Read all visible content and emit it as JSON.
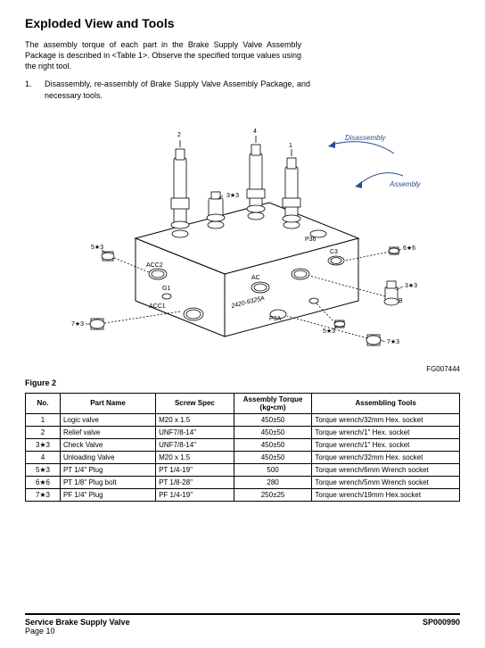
{
  "title": "Exploded View and Tools",
  "intro": "The assembly torque of each part in the Brake Supply Valve Assembly Package is described in <Table 1>. Observe the specified torque values using the right tool.",
  "list_num": "1.",
  "list_text": "Disassembly, re-assembly of Brake Supply Valve Assembly Package, and necessary tools.",
  "figure_label": "Figure 2",
  "figure_code": "FG007444",
  "arrows": {
    "disassembly": "Disassembly",
    "assembly": "Assembly"
  },
  "callouts": {
    "c2": "2",
    "c4": "4",
    "c1": "1",
    "c3x3": "3★3",
    "c5x3a": "5★3",
    "c6x6": "6★6",
    "c3x3b": "3★3",
    "c7x3a": "7★3",
    "c5x3b": "5★3",
    "c7x3b": "7★3"
  },
  "block_labels": {
    "acc2": "ACC2",
    "ac": "AC",
    "c3": "C3",
    "g1": "G1",
    "acc1": "ACC1",
    "partno": "2420-9325A",
    "p3a": "P3A",
    "p36": "P36",
    "b": "B"
  },
  "table": {
    "columns": [
      "No.",
      "Part Name",
      "Screw Spec",
      "Assembly Torque (kg•cm)",
      "Assembling Tools"
    ],
    "col_widths": [
      "8%",
      "22%",
      "18%",
      "18%",
      "34%"
    ],
    "rows": [
      [
        "1",
        "Logic valve",
        "M20 x 1.5",
        "450±50",
        "Torque wrench/32mm Hex. socket"
      ],
      [
        "2",
        "Relief valve",
        "UNF7/8-14\"",
        "450±50",
        "Torque wrench/1\" Hex. socket"
      ],
      [
        "3★3",
        "Check Valve",
        "UNF7/8-14\"",
        "450±50",
        "Torque wrench/1\" Hex. socket"
      ],
      [
        "4",
        "Unloading Valve",
        "M20 x 1.5",
        "450±50",
        "Torque wrench/32mm Hex. socket"
      ],
      [
        "5★3",
        "PT 1/4\" Plug",
        "PT 1/4-19\"",
        "500",
        "Torque wrench/6mm Wrench socket"
      ],
      [
        "6★6",
        "PT 1/8\" Plug bolt",
        "PT 1/8-28\"",
        "280",
        "Torque wrench/5mm Wrench socket"
      ],
      [
        "7★3",
        "PF 1/4\" Plug",
        "PF 1/4-19\"",
        "250±25",
        "Torque wrench/19mm Hex.socket"
      ]
    ]
  },
  "footer": {
    "left_line1": "Service Brake Supply Valve",
    "left_line2": "Page 10",
    "right": "SP000990"
  },
  "colors": {
    "arrow_text": "#2a4d8f",
    "stroke": "#000000",
    "bg": "#ffffff"
  }
}
